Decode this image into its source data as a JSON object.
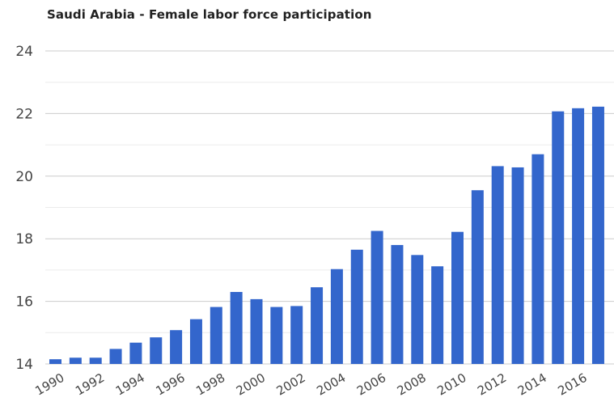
{
  "chart_data": {
    "type": "bar",
    "title": "Saudi Arabia - Female labor force participation",
    "xlabel": "",
    "ylabel": "",
    "categories": [
      "1990",
      "1991",
      "1992",
      "1993",
      "1994",
      "1995",
      "1996",
      "1997",
      "1998",
      "1999",
      "2000",
      "2001",
      "2002",
      "2003",
      "2004",
      "2005",
      "2006",
      "2007",
      "2008",
      "2009",
      "2010",
      "2011",
      "2012",
      "2013",
      "2014",
      "2015",
      "2016",
      "2017"
    ],
    "x_tick_labels": [
      "1990",
      "1992",
      "1994",
      "1996",
      "1998",
      "2000",
      "2002",
      "2004",
      "2006",
      "2008",
      "2010",
      "2012",
      "2014",
      "2016"
    ],
    "values": [
      14.15,
      14.2,
      14.2,
      14.48,
      14.68,
      14.85,
      15.08,
      15.43,
      15.82,
      16.3,
      16.07,
      15.82,
      15.85,
      16.45,
      17.03,
      17.65,
      18.25,
      17.8,
      17.48,
      17.12,
      18.22,
      19.55,
      20.32,
      20.28,
      20.7,
      22.07,
      22.17,
      22.22
    ],
    "ylim": [
      14,
      24
    ],
    "y_ticks": [
      14,
      16,
      18,
      20,
      22,
      24
    ],
    "grid": true,
    "bar_color": "#3366cc",
    "gridline_color": "#cccccc",
    "minor_gridline_color": "#ebebeb",
    "text_color": "#444444"
  }
}
